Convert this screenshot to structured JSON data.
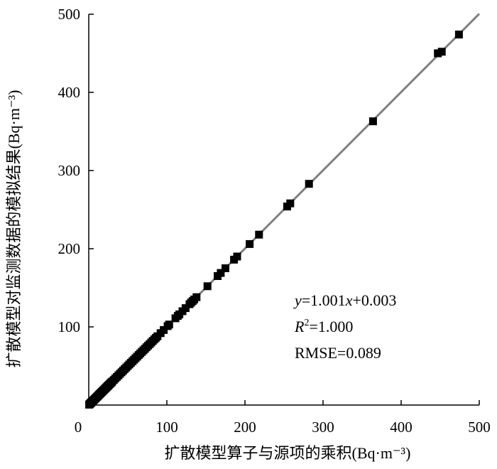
{
  "chart_data": {
    "type": "scatter",
    "title": "",
    "xlabel": "扩散模型算子与源项的乘积(Bq·m⁻³)",
    "ylabel": "扩散模型对监测数据的模拟结果(Bq·m⁻³)",
    "xlim": [
      0,
      500
    ],
    "ylim": [
      0,
      500
    ],
    "x_ticks": [
      0,
      100,
      200,
      300,
      400,
      500
    ],
    "y_ticks": [
      100,
      200,
      300,
      400,
      500
    ],
    "x_tick_labels": [
      "0",
      "100",
      "200",
      "300",
      "400",
      "500"
    ],
    "y_tick_labels": [
      "100",
      "200",
      "300",
      "400",
      "500"
    ],
    "grid": false,
    "legend": "none",
    "marker": "square",
    "marker_color": "#000000",
    "fit_line": {
      "slope": 1.001,
      "intercept": 0.003,
      "color": "#808080"
    },
    "annotations": [
      {
        "id": "eq",
        "pre": "y",
        "post": "=1.001x+0.003",
        "x_italic": "x",
        "eq_post": "+0.003",
        "eq_mid": "=1.001"
      },
      {
        "id": "r2",
        "pre": "R",
        "sup": "2",
        "post": "=1.000"
      },
      {
        "id": "rmse",
        "text": "RMSE=0.089"
      }
    ],
    "points": [
      [
        0.5,
        0.5
      ],
      [
        1,
        1
      ],
      [
        1.5,
        1.5
      ],
      [
        2,
        2
      ],
      [
        2.5,
        2.5
      ],
      [
        3,
        3
      ],
      [
        3.5,
        3.5
      ],
      [
        4,
        4
      ],
      [
        5,
        5
      ],
      [
        6,
        6
      ],
      [
        7,
        7
      ],
      [
        8,
        8
      ],
      [
        9,
        9
      ],
      [
        10,
        10
      ],
      [
        11,
        11
      ],
      [
        12,
        12
      ],
      [
        13,
        13
      ],
      [
        14,
        14
      ],
      [
        15,
        15
      ],
      [
        16,
        16
      ],
      [
        17,
        17
      ],
      [
        18,
        18
      ],
      [
        19,
        19
      ],
      [
        20,
        20
      ],
      [
        21,
        21
      ],
      [
        22,
        22
      ],
      [
        23,
        23
      ],
      [
        24,
        24
      ],
      [
        25,
        25
      ],
      [
        26,
        26
      ],
      [
        27,
        27
      ],
      [
        28,
        28
      ],
      [
        29,
        29
      ],
      [
        30,
        30
      ],
      [
        32,
        32
      ],
      [
        34,
        34
      ],
      [
        36,
        36
      ],
      [
        38,
        38
      ],
      [
        40,
        40
      ],
      [
        42,
        42
      ],
      [
        44,
        44
      ],
      [
        46,
        46
      ],
      [
        48,
        48
      ],
      [
        50,
        50
      ],
      [
        52,
        52
      ],
      [
        54,
        54
      ],
      [
        56,
        56
      ],
      [
        58,
        58
      ],
      [
        60,
        60
      ],
      [
        62,
        62
      ],
      [
        64,
        64
      ],
      [
        66,
        66
      ],
      [
        68,
        68
      ],
      [
        70,
        70
      ],
      [
        72,
        72
      ],
      [
        74,
        74
      ],
      [
        76,
        76
      ],
      [
        78,
        78
      ],
      [
        80,
        80
      ],
      [
        82,
        82
      ],
      [
        84,
        84
      ],
      [
        86,
        86
      ],
      [
        88,
        88
      ],
      [
        92,
        92
      ],
      [
        96,
        96
      ],
      [
        101,
        101
      ],
      [
        103,
        103
      ],
      [
        111,
        111
      ],
      [
        114,
        114
      ],
      [
        116,
        116
      ],
      [
        120,
        120
      ],
      [
        124,
        124
      ],
      [
        129,
        129
      ],
      [
        131,
        131
      ],
      [
        133,
        133
      ],
      [
        135,
        135
      ],
      [
        138,
        138
      ],
      [
        152,
        152
      ],
      [
        165,
        165
      ],
      [
        169,
        169
      ],
      [
        175,
        175
      ],
      [
        186,
        186
      ],
      [
        190,
        190
      ],
      [
        206,
        206
      ],
      [
        218,
        218
      ],
      [
        254,
        254
      ],
      [
        258,
        258
      ],
      [
        282,
        283
      ],
      [
        364,
        363
      ],
      [
        447,
        450
      ],
      [
        452,
        452
      ],
      [
        474,
        474
      ]
    ]
  }
}
